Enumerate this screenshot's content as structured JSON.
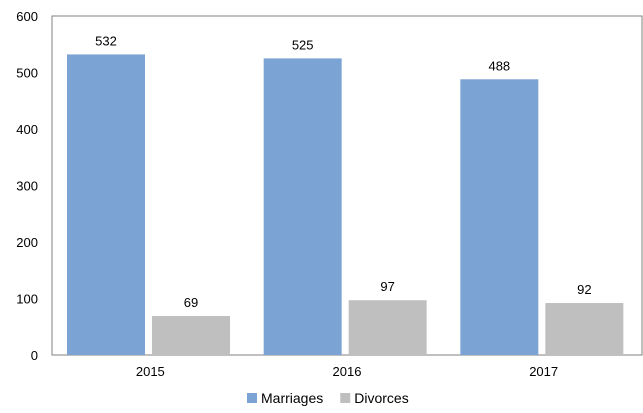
{
  "chart_data": {
    "type": "bar",
    "categories": [
      "2015",
      "2016",
      "2017"
    ],
    "series": [
      {
        "name": "Marriages",
        "values": [
          532,
          525,
          488
        ],
        "color": "#7BA3D4"
      },
      {
        "name": "Divorces",
        "values": [
          69,
          97,
          92
        ],
        "color": "#BFBFBF"
      }
    ],
    "ylim": [
      0,
      600
    ],
    "yticks": [
      "0",
      "100",
      "200",
      "300",
      "400",
      "500",
      "600"
    ],
    "data_labels": true,
    "grid": false,
    "legend_position": "bottom"
  }
}
